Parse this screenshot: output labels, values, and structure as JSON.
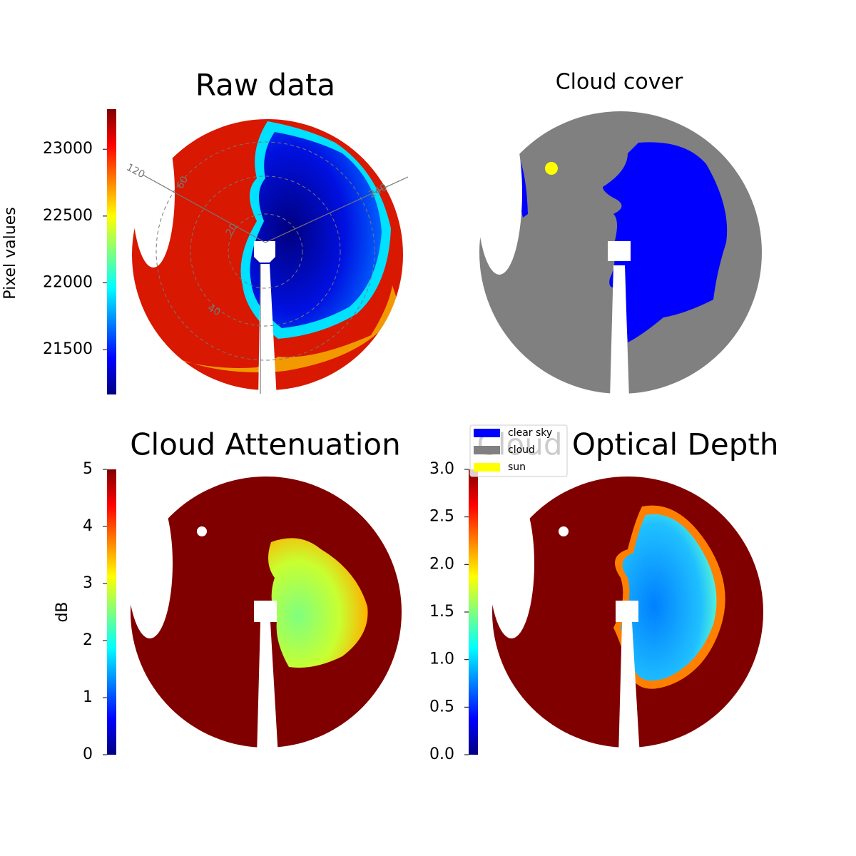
{
  "chart_data": [
    {
      "type": "image",
      "title": "Raw data",
      "colorbar_label": "Pixel values",
      "colormap": "jet",
      "ylim": [
        21165,
        23300
      ],
      "yticks": [
        21500,
        22000,
        22500,
        23000
      ],
      "polar_labels": [
        "120",
        "240",
        "20",
        "40",
        "60"
      ]
    },
    {
      "type": "classes",
      "title": "Cloud cover",
      "series": [
        {
          "name": "clear sky",
          "color": "#0000ff"
        },
        {
          "name": "cloud",
          "color": "#808080"
        },
        {
          "name": "sun",
          "color": "#ffff00"
        }
      ]
    },
    {
      "type": "image",
      "title": "Cloud Attenuation",
      "colorbar_label": "dB",
      "colormap": "jet",
      "ylim": [
        0,
        5
      ],
      "yticks": [
        0,
        1,
        2,
        3,
        4,
        5
      ]
    },
    {
      "type": "image",
      "title": "Cloud Optical Depth",
      "colormap": "jet",
      "ylim": [
        0,
        3
      ],
      "yticks": [
        {
          "value": 0,
          "label": "0.0"
        },
        0.5,
        {
          "value": 1,
          "label": "1.0"
        },
        1.5,
        {
          "value": 2,
          "label": "2.0"
        },
        2.5,
        {
          "value": 3,
          "label": "3.0"
        }
      ]
    }
  ]
}
